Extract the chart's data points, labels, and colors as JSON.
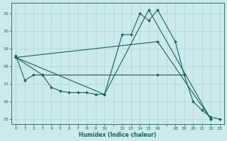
{
  "xlabel": "Humidex (Indice chaleur)",
  "ylabel": "",
  "bg_color": "#cceaea",
  "grid_color": "#aad4d4",
  "line_color": "#1a6060",
  "xlim": [
    -0.5,
    23.5
  ],
  "ylim": [
    14.7,
    21.6
  ],
  "xticks": [
    0,
    1,
    2,
    3,
    4,
    5,
    6,
    7,
    8,
    9,
    10,
    12,
    13,
    14,
    15,
    16,
    18,
    19,
    20,
    21,
    22,
    23
  ],
  "yticks": [
    15,
    16,
    17,
    18,
    19,
    20,
    21
  ],
  "series": [
    {
      "x": [
        0,
        1,
        2,
        3,
        4,
        5,
        6,
        7,
        8,
        9,
        10,
        12,
        13,
        14,
        15,
        16,
        18,
        19,
        20,
        21,
        22,
        23
      ],
      "y": [
        18.6,
        17.2,
        17.5,
        17.5,
        16.8,
        16.6,
        16.5,
        16.5,
        16.5,
        16.4,
        16.4,
        19.8,
        19.8,
        21.0,
        20.6,
        21.2,
        19.4,
        17.5,
        16.0,
        15.5,
        15.1,
        15.0
      ]
    },
    {
      "x": [
        0,
        3,
        16,
        19
      ],
      "y": [
        18.5,
        17.5,
        17.5,
        17.5
      ]
    },
    {
      "x": [
        0,
        16,
        22
      ],
      "y": [
        18.5,
        19.4,
        15.0
      ]
    },
    {
      "x": [
        0,
        10,
        15,
        22
      ],
      "y": [
        18.5,
        16.4,
        21.2,
        15.0
      ]
    }
  ]
}
